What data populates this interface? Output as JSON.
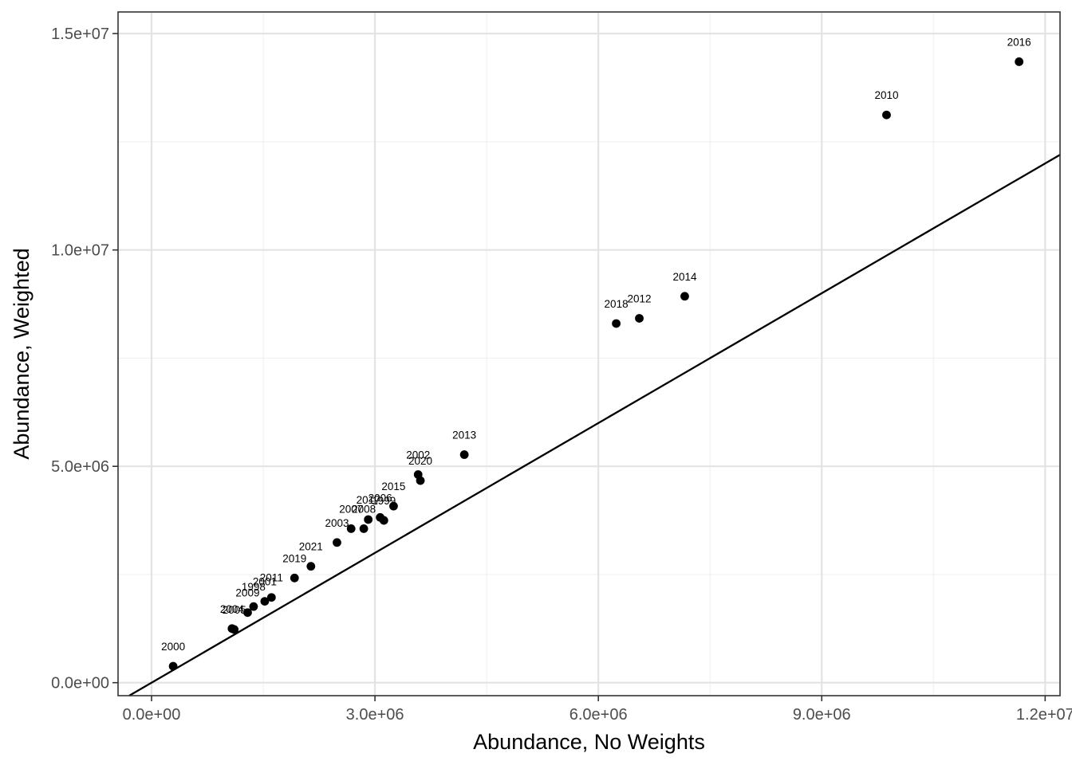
{
  "chart_data": {
    "type": "scatter",
    "title": "",
    "xlabel": "Abundance, No Weights",
    "ylabel": "Abundance, Weighted",
    "xlim": [
      -450000,
      12200000
    ],
    "ylim": [
      -300000,
      15500000
    ],
    "x_ticks": [
      0,
      3000000,
      6000000,
      9000000,
      12000000
    ],
    "x_tick_labels": [
      "0.0e+00",
      "3.0e+06",
      "6.0e+06",
      "9.0e+06",
      "1.2e+07"
    ],
    "y_ticks": [
      0,
      5000000,
      10000000,
      15000000
    ],
    "y_tick_labels": [
      "0.0e+00",
      "5.0e+06",
      "1.0e+07",
      "1.5e+07"
    ],
    "grid": true,
    "reference_line": {
      "type": "identity",
      "slope": 1,
      "intercept": 0
    },
    "points": [
      {
        "label": "2000",
        "x": 290000,
        "y": 380000
      },
      {
        "label": "2004",
        "x": 1080000,
        "y": 1250000
      },
      {
        "label": "2005",
        "x": 1110000,
        "y": 1230000
      },
      {
        "label": "2009",
        "x": 1290000,
        "y": 1620000
      },
      {
        "label": "1998",
        "x": 1370000,
        "y": 1760000
      },
      {
        "label": "2001",
        "x": 1520000,
        "y": 1880000
      },
      {
        "label": "2011",
        "x": 1610000,
        "y": 1970000
      },
      {
        "label": "2019",
        "x": 1920000,
        "y": 2420000
      },
      {
        "label": "2021",
        "x": 2140000,
        "y": 2690000
      },
      {
        "label": "2003",
        "x": 2490000,
        "y": 3240000
      },
      {
        "label": "2007",
        "x": 2680000,
        "y": 3560000
      },
      {
        "label": "2008",
        "x": 2850000,
        "y": 3560000
      },
      {
        "label": "2017",
        "x": 2910000,
        "y": 3770000
      },
      {
        "label": "2006",
        "x": 3070000,
        "y": 3820000
      },
      {
        "label": "1999",
        "x": 3120000,
        "y": 3750000
      },
      {
        "label": "2015",
        "x": 3250000,
        "y": 4080000
      },
      {
        "label": "2002",
        "x": 3580000,
        "y": 4810000
      },
      {
        "label": "2020",
        "x": 3610000,
        "y": 4670000
      },
      {
        "label": "2013",
        "x": 4200000,
        "y": 5270000
      },
      {
        "label": "2018",
        "x": 6240000,
        "y": 8300000
      },
      {
        "label": "2012",
        "x": 6550000,
        "y": 8420000
      },
      {
        "label": "2014",
        "x": 7160000,
        "y": 8930000
      },
      {
        "label": "2010",
        "x": 9870000,
        "y": 13120000
      },
      {
        "label": "2016",
        "x": 11650000,
        "y": 14350000
      }
    ]
  }
}
